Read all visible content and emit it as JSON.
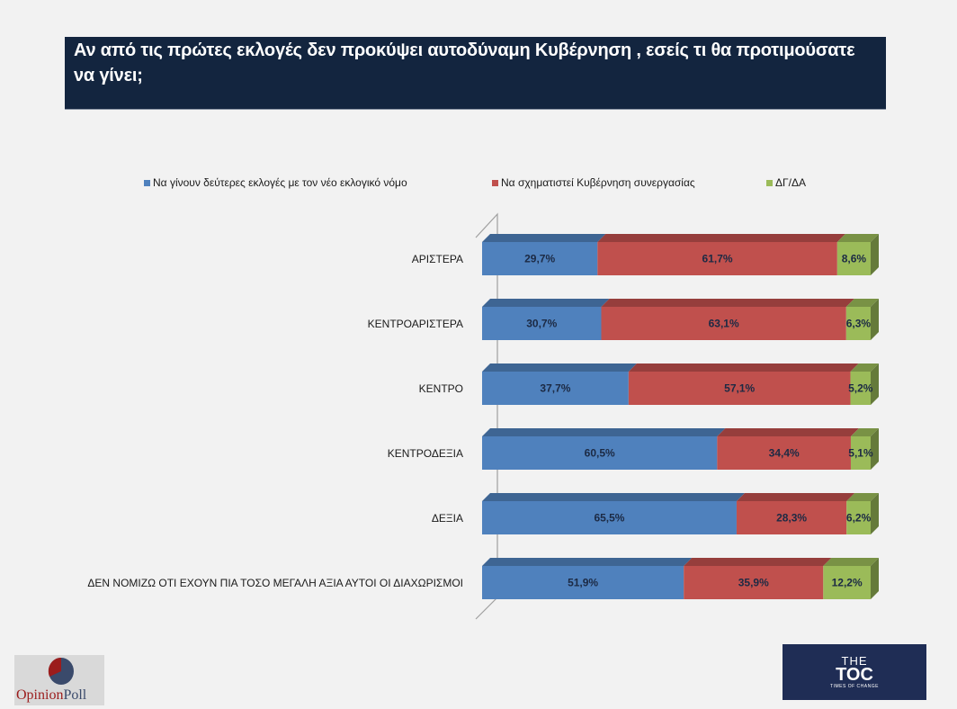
{
  "title": "Αν από τις πρώτες εκλογές δεν προκύψει αυτοδύναμη Κυβέρνηση , εσείς τι θα προτιμούσατε να γίνει;",
  "chart_data": {
    "type": "bar",
    "orientation": "horizontal",
    "stacked": "percent",
    "style": "3d",
    "title": "Αν από τις πρώτες εκλογές δεν προκύψει αυτοδύναμη Κυβέρνηση , εσείς τι θα προτιμούσατε να γίνει;",
    "legend_position": "top",
    "grid": false,
    "xlim": [
      0,
      100
    ],
    "categories": [
      "ΑΡΙΣΤΕΡΑ",
      "ΚΕΝΤΡΟΑΡΙΣΤΕΡΑ",
      "ΚΕΝΤΡΟ",
      "ΚΕΝΤΡΟΔΕΞΙΑ",
      "ΔΕΞΙΑ",
      "ΔΕΝ ΝΟΜΙΖΩ ΟΤΙ ΕΧΟΥΝ ΠΙΑ ΤΟΣΟ ΜΕΓΑΛΗ ΑΞΙΑ ΑΥΤΟΙ ΟΙ ΔΙΑΧΩΡΙΣΜΟΙ"
    ],
    "series": [
      {
        "name": "Να γίνουν δεύτερες εκλογές με τον νέο εκλογικό νόμο",
        "color": "#4f81bd",
        "values": [
          29.7,
          30.7,
          37.7,
          60.5,
          65.5,
          51.9
        ],
        "labels": [
          "29,7%",
          "30,7%",
          "37,7%",
          "60,5%",
          "65,5%",
          "51,9%"
        ]
      },
      {
        "name": "Να σχηματιστεί Κυβέρνηση συνεργασίας",
        "color": "#c0504d",
        "values": [
          61.7,
          63.1,
          57.1,
          34.4,
          28.3,
          35.9
        ],
        "labels": [
          "61,7%",
          "63,1%",
          "57,1%",
          "34,4%",
          "28,3%",
          "35,9%"
        ]
      },
      {
        "name": "ΔΓ/ΔΑ",
        "color": "#9bbb59",
        "values": [
          8.6,
          6.3,
          5.2,
          5.1,
          6.2,
          12.2
        ],
        "labels": [
          "8,6%",
          "6,3%",
          "5,2%",
          "5,1%",
          "6,2%",
          "12,2%"
        ]
      }
    ]
  },
  "logos": {
    "left": "OpinionPoll",
    "right_top": "THE",
    "right_main": "TOC",
    "right_sub": "TIMES OF CHANGE"
  }
}
